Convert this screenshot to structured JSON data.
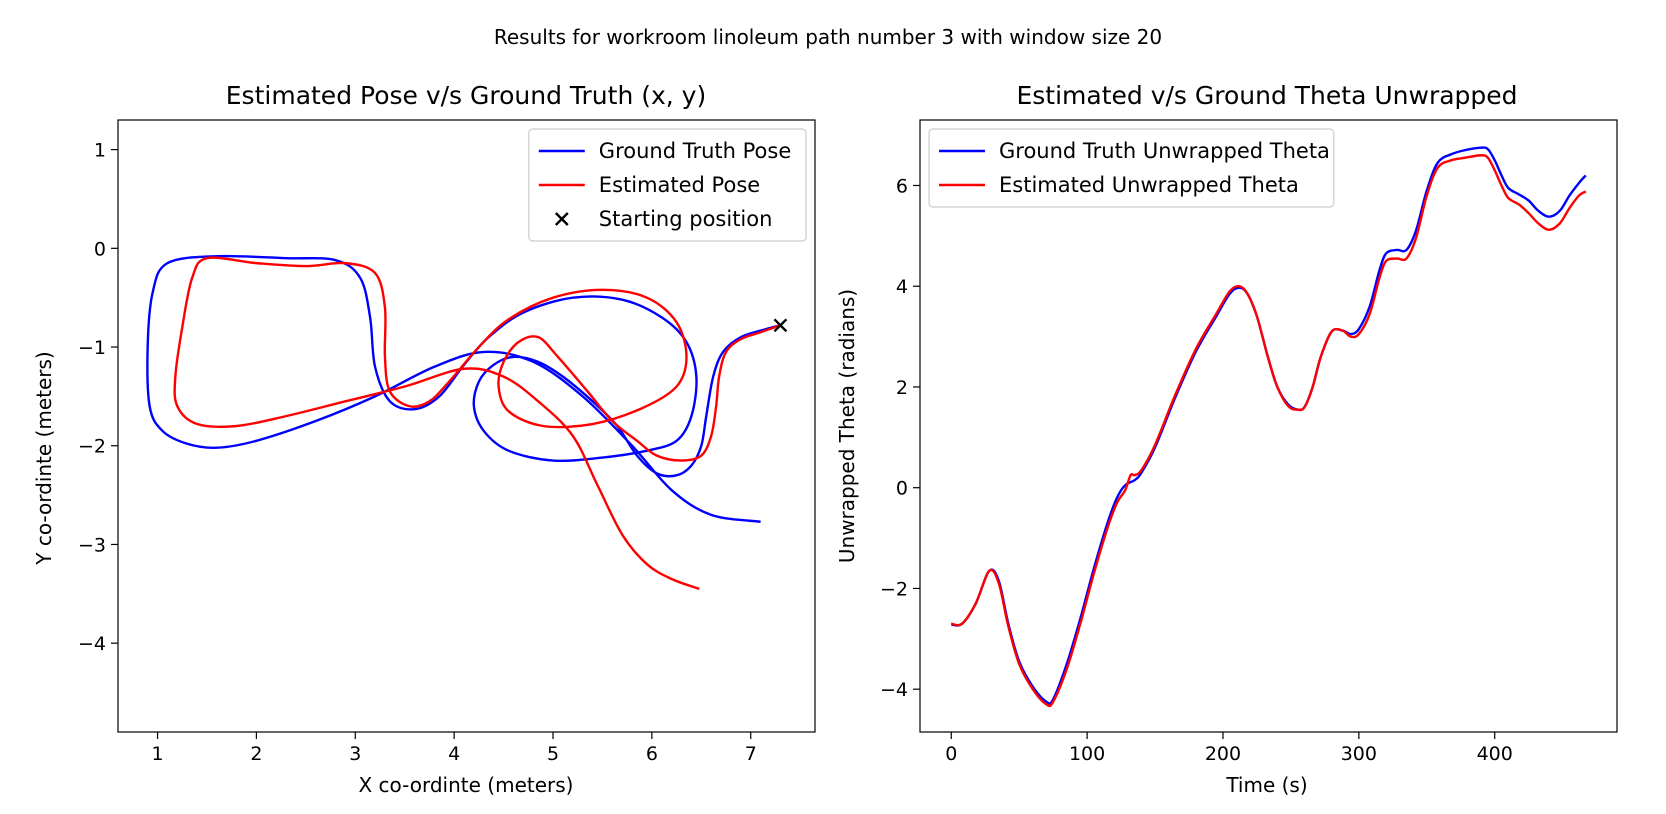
{
  "suptitle": "Results for workroom linoleum path number 3 with window size 20",
  "chart_data": [
    {
      "type": "line",
      "title": "Estimated Pose v/s Ground Truth (x, y)",
      "xlabel": "X co-ordinte (meters)",
      "ylabel": "Y co-ordinte (meters)",
      "xlim": [
        0.6,
        7.65
      ],
      "ylim": [
        -4.9,
        1.3
      ],
      "xticks": [
        1,
        2,
        3,
        4,
        5,
        6,
        7
      ],
      "yticks": [
        1,
        0,
        -1,
        -2,
        -3,
        -4
      ],
      "legend_position": "upper-right",
      "series": [
        {
          "name": "Ground Truth Pose",
          "color": "#0000ff",
          "points": [
            [
              7.3,
              -0.78
            ],
            [
              7.15,
              -0.82
            ],
            [
              6.9,
              -0.9
            ],
            [
              6.72,
              -1.05
            ],
            [
              6.62,
              -1.3
            ],
            [
              6.55,
              -1.7
            ],
            [
              6.5,
              -2.0
            ],
            [
              6.4,
              -2.2
            ],
            [
              6.25,
              -2.3
            ],
            [
              6.05,
              -2.28
            ],
            [
              5.85,
              -2.1
            ],
            [
              5.65,
              -1.8
            ],
            [
              5.4,
              -1.55
            ],
            [
              5.1,
              -1.3
            ],
            [
              4.85,
              -1.15
            ],
            [
              4.6,
              -1.1
            ],
            [
              4.4,
              -1.18
            ],
            [
              4.25,
              -1.35
            ],
            [
              4.2,
              -1.6
            ],
            [
              4.3,
              -1.85
            ],
            [
              4.55,
              -2.05
            ],
            [
              5.0,
              -2.15
            ],
            [
              5.5,
              -2.12
            ],
            [
              5.95,
              -2.05
            ],
            [
              6.25,
              -1.95
            ],
            [
              6.4,
              -1.7
            ],
            [
              6.45,
              -1.3
            ],
            [
              6.35,
              -0.95
            ],
            [
              6.1,
              -0.7
            ],
            [
              5.7,
              -0.52
            ],
            [
              5.2,
              -0.5
            ],
            [
              4.7,
              -0.65
            ],
            [
              4.35,
              -0.9
            ],
            [
              4.1,
              -1.18
            ],
            [
              3.85,
              -1.5
            ],
            [
              3.6,
              -1.63
            ],
            [
              3.35,
              -1.55
            ],
            [
              3.2,
              -1.2
            ],
            [
              3.15,
              -0.7
            ],
            [
              3.05,
              -0.3
            ],
            [
              2.8,
              -0.12
            ],
            [
              2.3,
              -0.1
            ],
            [
              1.6,
              -0.08
            ],
            [
              1.1,
              -0.15
            ],
            [
              0.95,
              -0.45
            ],
            [
              0.9,
              -1.0
            ],
            [
              0.92,
              -1.6
            ],
            [
              1.05,
              -1.85
            ],
            [
              1.3,
              -1.98
            ],
            [
              1.6,
              -2.02
            ],
            [
              2.0,
              -1.95
            ],
            [
              2.6,
              -1.75
            ],
            [
              3.2,
              -1.5
            ],
            [
              3.8,
              -1.2
            ],
            [
              4.3,
              -1.05
            ],
            [
              4.8,
              -1.15
            ],
            [
              5.3,
              -1.5
            ],
            [
              5.8,
              -2.0
            ],
            [
              6.2,
              -2.45
            ],
            [
              6.6,
              -2.7
            ],
            [
              7.1,
              -2.77
            ]
          ]
        },
        {
          "name": "Estimated Pose",
          "color": "#ff0000",
          "points": [
            [
              7.3,
              -0.78
            ],
            [
              7.1,
              -0.85
            ],
            [
              6.9,
              -0.92
            ],
            [
              6.75,
              -1.05
            ],
            [
              6.68,
              -1.3
            ],
            [
              6.65,
              -1.6
            ],
            [
              6.6,
              -1.9
            ],
            [
              6.5,
              -2.1
            ],
            [
              6.3,
              -2.15
            ],
            [
              6.05,
              -2.1
            ],
            [
              5.85,
              -1.95
            ],
            [
              5.6,
              -1.75
            ],
            [
              5.35,
              -1.45
            ],
            [
              5.05,
              -1.1
            ],
            [
              4.85,
              -0.9
            ],
            [
              4.65,
              -0.95
            ],
            [
              4.5,
              -1.15
            ],
            [
              4.45,
              -1.4
            ],
            [
              4.55,
              -1.65
            ],
            [
              4.9,
              -1.8
            ],
            [
              5.4,
              -1.78
            ],
            [
              5.9,
              -1.62
            ],
            [
              6.25,
              -1.4
            ],
            [
              6.35,
              -1.1
            ],
            [
              6.25,
              -0.75
            ],
            [
              5.95,
              -0.5
            ],
            [
              5.5,
              -0.42
            ],
            [
              5.0,
              -0.5
            ],
            [
              4.55,
              -0.72
            ],
            [
              4.25,
              -1.0
            ],
            [
              3.95,
              -1.35
            ],
            [
              3.75,
              -1.55
            ],
            [
              3.55,
              -1.6
            ],
            [
              3.35,
              -1.45
            ],
            [
              3.3,
              -1.1
            ],
            [
              3.3,
              -0.6
            ],
            [
              3.2,
              -0.25
            ],
            [
              2.9,
              -0.15
            ],
            [
              2.5,
              -0.18
            ],
            [
              2.0,
              -0.15
            ],
            [
              1.5,
              -0.1
            ],
            [
              1.35,
              -0.3
            ],
            [
              1.25,
              -0.8
            ],
            [
              1.18,
              -1.3
            ],
            [
              1.2,
              -1.6
            ],
            [
              1.4,
              -1.78
            ],
            [
              1.8,
              -1.8
            ],
            [
              2.3,
              -1.7
            ],
            [
              2.9,
              -1.55
            ],
            [
              3.5,
              -1.4
            ],
            [
              4.1,
              -1.22
            ],
            [
              4.5,
              -1.3
            ],
            [
              4.85,
              -1.55
            ],
            [
              5.2,
              -1.9
            ],
            [
              5.45,
              -2.4
            ],
            [
              5.7,
              -2.9
            ],
            [
              5.95,
              -3.2
            ],
            [
              6.2,
              -3.35
            ],
            [
              6.48,
              -3.45
            ]
          ]
        },
        {
          "name": "Starting position",
          "type": "scatter",
          "marker": "x",
          "color": "#000000",
          "points": [
            [
              7.3,
              -0.78
            ]
          ]
        }
      ]
    },
    {
      "type": "line",
      "title": "Estimated v/s Ground Theta Unwrapped",
      "xlabel": "Time (s)",
      "ylabel": "Unwrapped Theta (radians)",
      "xlim": [
        -23,
        490
      ],
      "ylim": [
        -4.85,
        7.3
      ],
      "xticks": [
        0,
        100,
        200,
        300,
        400
      ],
      "yticks": [
        6,
        4,
        2,
        0,
        -2,
        -4
      ],
      "legend_position": "upper-left",
      "series": [
        {
          "name": "Ground Truth Unwrapped Theta",
          "color": "#0000ff",
          "points": [
            [
              0,
              -2.72
            ],
            [
              8,
              -2.7
            ],
            [
              18,
              -2.3
            ],
            [
              28,
              -1.65
            ],
            [
              35,
              -1.85
            ],
            [
              42,
              -2.7
            ],
            [
              50,
              -3.45
            ],
            [
              60,
              -3.95
            ],
            [
              70,
              -4.25
            ],
            [
              75,
              -4.2
            ],
            [
              85,
              -3.5
            ],
            [
              95,
              -2.6
            ],
            [
              105,
              -1.6
            ],
            [
              115,
              -0.7
            ],
            [
              122,
              -0.2
            ],
            [
              128,
              0.05
            ],
            [
              135,
              0.15
            ],
            [
              140,
              0.3
            ],
            [
              150,
              0.8
            ],
            [
              165,
              1.8
            ],
            [
              180,
              2.7
            ],
            [
              195,
              3.4
            ],
            [
              205,
              3.85
            ],
            [
              212,
              3.97
            ],
            [
              218,
              3.85
            ],
            [
              225,
              3.4
            ],
            [
              233,
              2.6
            ],
            [
              240,
              2.0
            ],
            [
              248,
              1.65
            ],
            [
              255,
              1.55
            ],
            [
              260,
              1.6
            ],
            [
              266,
              2.0
            ],
            [
              272,
              2.6
            ],
            [
              280,
              3.1
            ],
            [
              288,
              3.12
            ],
            [
              294,
              3.05
            ],
            [
              300,
              3.15
            ],
            [
              308,
              3.6
            ],
            [
              315,
              4.3
            ],
            [
              320,
              4.65
            ],
            [
              328,
              4.72
            ],
            [
              335,
              4.72
            ],
            [
              342,
              5.1
            ],
            [
              350,
              5.9
            ],
            [
              358,
              6.45
            ],
            [
              368,
              6.62
            ],
            [
              378,
              6.7
            ],
            [
              390,
              6.75
            ],
            [
              395,
              6.72
            ],
            [
              400,
              6.5
            ],
            [
              405,
              6.2
            ],
            [
              410,
              5.95
            ],
            [
              418,
              5.82
            ],
            [
              425,
              5.7
            ],
            [
              432,
              5.5
            ],
            [
              440,
              5.38
            ],
            [
              448,
              5.5
            ],
            [
              455,
              5.8
            ],
            [
              462,
              6.05
            ],
            [
              467,
              6.2
            ]
          ]
        },
        {
          "name": "Estimated Unwrapped Theta",
          "color": "#ff0000",
          "points": [
            [
              0,
              -2.7
            ],
            [
              8,
              -2.7
            ],
            [
              18,
              -2.3
            ],
            [
              28,
              -1.65
            ],
            [
              35,
              -1.9
            ],
            [
              42,
              -2.75
            ],
            [
              50,
              -3.5
            ],
            [
              60,
              -4.0
            ],
            [
              70,
              -4.3
            ],
            [
              75,
              -4.25
            ],
            [
              85,
              -3.6
            ],
            [
              95,
              -2.7
            ],
            [
              105,
              -1.7
            ],
            [
              115,
              -0.8
            ],
            [
              122,
              -0.3
            ],
            [
              128,
              -0.05
            ],
            [
              132,
              0.25
            ],
            [
              135,
              0.25
            ],
            [
              140,
              0.35
            ],
            [
              150,
              0.85
            ],
            [
              165,
              1.85
            ],
            [
              180,
              2.75
            ],
            [
              195,
              3.45
            ],
            [
              205,
              3.9
            ],
            [
              212,
              4.0
            ],
            [
              218,
              3.85
            ],
            [
              225,
              3.4
            ],
            [
              233,
              2.6
            ],
            [
              240,
              2.0
            ],
            [
              248,
              1.62
            ],
            [
              255,
              1.55
            ],
            [
              260,
              1.6
            ],
            [
              266,
              2.0
            ],
            [
              272,
              2.6
            ],
            [
              280,
              3.1
            ],
            [
              288,
              3.12
            ],
            [
              294,
              3.0
            ],
            [
              300,
              3.05
            ],
            [
              308,
              3.45
            ],
            [
              315,
              4.15
            ],
            [
              320,
              4.5
            ],
            [
              328,
              4.55
            ],
            [
              335,
              4.55
            ],
            [
              342,
              4.95
            ],
            [
              350,
              5.8
            ],
            [
              358,
              6.35
            ],
            [
              368,
              6.5
            ],
            [
              378,
              6.55
            ],
            [
              390,
              6.6
            ],
            [
              395,
              6.55
            ],
            [
              400,
              6.3
            ],
            [
              405,
              6.0
            ],
            [
              410,
              5.75
            ],
            [
              418,
              5.62
            ],
            [
              425,
              5.45
            ],
            [
              432,
              5.25
            ],
            [
              440,
              5.12
            ],
            [
              448,
              5.25
            ],
            [
              455,
              5.55
            ],
            [
              462,
              5.8
            ],
            [
              467,
              5.88
            ]
          ]
        }
      ]
    }
  ]
}
